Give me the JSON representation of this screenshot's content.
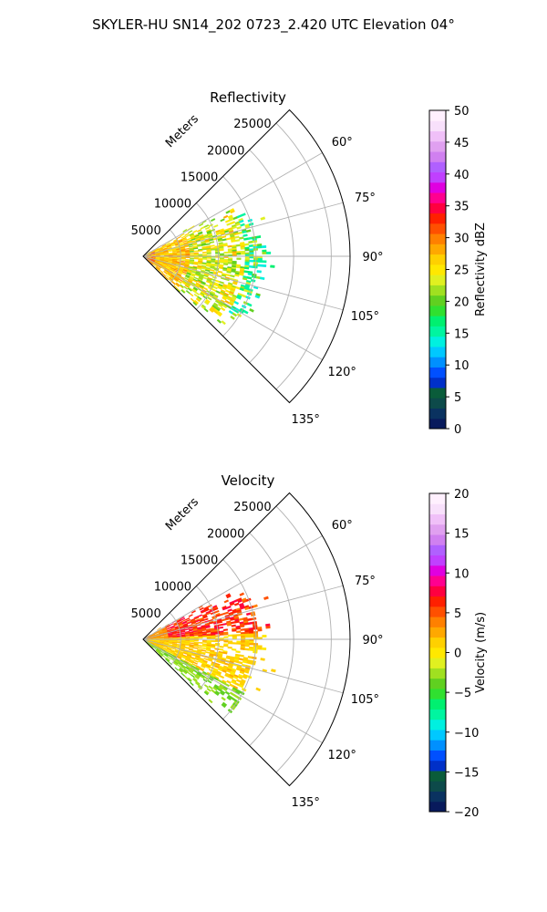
{
  "figure_title": "SKYLER-HU  SN14_202  0723_2.420 UTC Elevation 04°",
  "chart_data": [
    {
      "type": "heatmap",
      "subtype": "polar-sector-ppi",
      "title": "Reflectivity",
      "radial_axis_label": "Meters",
      "radial_ticks": [
        5000,
        10000,
        15000,
        20000,
        25000
      ],
      "radial_tick_labels": [
        "5000",
        "10000",
        "15000",
        "20000",
        "25000"
      ],
      "r_max": 27500,
      "angle_ticks": [
        60,
        75,
        90,
        105,
        120,
        135
      ],
      "angle_tick_labels": [
        "60°",
        "75°",
        "90°",
        "105°",
        "120°",
        "135°"
      ],
      "theta_range": [
        45,
        135
      ],
      "grid": true,
      "colorbar": {
        "label": "Reflectivity dBZ",
        "range": [
          0,
          50
        ],
        "ticks": [
          0,
          5,
          10,
          15,
          20,
          25,
          30,
          35,
          40,
          45,
          50
        ],
        "tick_labels": [
          "0",
          "5",
          "10",
          "15",
          "20",
          "25",
          "30",
          "35",
          "40",
          "45",
          "50"
        ],
        "colors": [
          "#081a5c",
          "#0a3260",
          "#0d4a4a",
          "#0a5c3a",
          "#0030c8",
          "#0050ff",
          "#0090ff",
          "#00c8ff",
          "#00f0e0",
          "#00f5a0",
          "#00f070",
          "#30e030",
          "#60d020",
          "#a0e020",
          "#e0f020",
          "#ffe800",
          "#ffd000",
          "#ffa800",
          "#ff8000",
          "#ff5000",
          "#ff2000",
          "#ff0040",
          "#ff0090",
          "#e000e0",
          "#c040ff",
          "#b060ff",
          "#d080f0",
          "#e0a0f0",
          "#f0c0f8",
          "#f8e0fb",
          "#fff0fe"
        ]
      },
      "echo_region": {
        "r_range_m": [
          0,
          26000
        ],
        "theta_range_deg": [
          55,
          135
        ],
        "dominant_values": [
          15,
          22,
          26
        ],
        "near_range_max": 35
      }
    },
    {
      "type": "heatmap",
      "subtype": "polar-sector-ppi",
      "title": "Velocity",
      "radial_axis_label": "Meters",
      "radial_ticks": [
        5000,
        10000,
        15000,
        20000,
        25000
      ],
      "radial_tick_labels": [
        "5000",
        "10000",
        "15000",
        "20000",
        "25000"
      ],
      "r_max": 27500,
      "angle_ticks": [
        60,
        75,
        90,
        105,
        120,
        135
      ],
      "angle_tick_labels": [
        "60°",
        "75°",
        "90°",
        "105°",
        "120°",
        "135°"
      ],
      "theta_range": [
        45,
        135
      ],
      "grid": true,
      "colorbar": {
        "label": "Velocity (m/s)",
        "range": [
          -20,
          20
        ],
        "ticks": [
          -20,
          -15,
          -10,
          -5,
          0,
          5,
          10,
          15,
          20
        ],
        "tick_labels": [
          "−20",
          "−15",
          "−10",
          "−5",
          "0",
          "5",
          "10",
          "15",
          "20"
        ],
        "colors": [
          "#081a5c",
          "#0a3260",
          "#0d4a4a",
          "#0a5c3a",
          "#0030c8",
          "#0050ff",
          "#0090ff",
          "#00c8ff",
          "#00f0e0",
          "#00f5a0",
          "#00f070",
          "#30e030",
          "#60d020",
          "#a0e020",
          "#e0f020",
          "#ffe800",
          "#ffd000",
          "#ffa800",
          "#ff8000",
          "#ff5000",
          "#ff2000",
          "#ff0040",
          "#ff0090",
          "#e000e0",
          "#c040ff",
          "#b060ff",
          "#d080f0",
          "#e0a0f0",
          "#f0c0f8",
          "#f8e0fb",
          "#fff0fe"
        ]
      },
      "echo_region": {
        "r_range_m": [
          0,
          26000
        ],
        "theta_range_deg": [
          55,
          135
        ],
        "north_of_90_value": 6,
        "south_of_90_value": 1,
        "south_edge_value": -3
      }
    }
  ]
}
